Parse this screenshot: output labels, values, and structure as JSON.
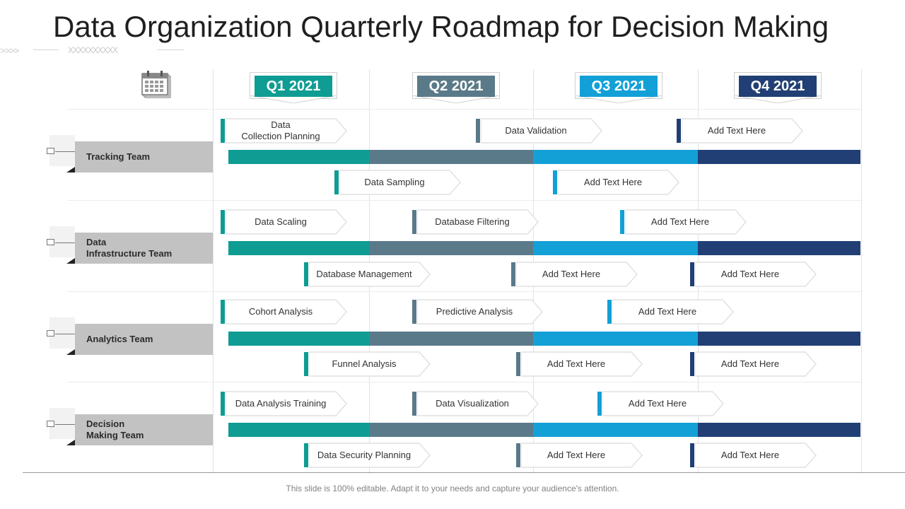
{
  "title": "Data Organization Quarterly Roadmap for Decision Making",
  "decoration": {
    "chevrons": ">>>>",
    "crosses": "XXXXXXXXXX"
  },
  "quarters": [
    {
      "label": "Q1 2021",
      "color": "#0e9c93"
    },
    {
      "label": "Q2 2021",
      "color": "#5a7a8a"
    },
    {
      "label": "Q3 2021",
      "color": "#12a0d6"
    },
    {
      "label": "Q4 2021",
      "color": "#213f75"
    }
  ],
  "teams": [
    {
      "name": "Tracking Team",
      "tasks": [
        {
          "label": "Data\nCollection Planning",
          "quarter": 0,
          "row": "top"
        },
        {
          "label": "Data Validation",
          "quarter": 1,
          "row": "top"
        },
        {
          "label": "Add Text Here",
          "quarter": 3,
          "row": "top"
        },
        {
          "label": "Data Sampling",
          "quarter": 0,
          "row": "bottom"
        },
        {
          "label": "Add Text Here",
          "quarter": 2,
          "row": "bottom"
        }
      ]
    },
    {
      "name": "Data\nInfrastructure Team",
      "tasks": [
        {
          "label": "Data Scaling",
          "quarter": 0,
          "row": "top"
        },
        {
          "label": "Database Filtering",
          "quarter": 1,
          "row": "top"
        },
        {
          "label": "Add Text Here",
          "quarter": 2,
          "row": "top"
        },
        {
          "label": "Database Management",
          "quarter": 0,
          "row": "bottom"
        },
        {
          "label": "Add Text Here",
          "quarter": 1,
          "row": "bottom"
        },
        {
          "label": "Add Text Here",
          "quarter": 3,
          "row": "bottom"
        }
      ]
    },
    {
      "name": "Analytics Team",
      "tasks": [
        {
          "label": "Cohort Analysis",
          "quarter": 0,
          "row": "top"
        },
        {
          "label": "Predictive Analysis",
          "quarter": 1,
          "row": "top"
        },
        {
          "label": "Add Text Here",
          "quarter": 2,
          "row": "top"
        },
        {
          "label": "Funnel Analysis",
          "quarter": 0,
          "row": "bottom"
        },
        {
          "label": "Add Text Here",
          "quarter": 1,
          "row": "bottom"
        },
        {
          "label": "Add Text Here",
          "quarter": 3,
          "row": "bottom"
        }
      ]
    },
    {
      "name": "Decision\nMaking Team",
      "tasks": [
        {
          "label": "Data Analysis Training",
          "quarter": 0,
          "row": "top"
        },
        {
          "label": "Data Visualization",
          "quarter": 1,
          "row": "top"
        },
        {
          "label": "Add Text Here",
          "quarter": 2,
          "row": "top"
        },
        {
          "label": "Data Security Planning",
          "quarter": 0,
          "row": "bottom"
        },
        {
          "label": "Add Text Here",
          "quarter": 1,
          "row": "bottom"
        },
        {
          "label": "Add Text Here",
          "quarter": 3,
          "row": "bottom"
        }
      ]
    }
  ],
  "footer": "This slide is 100% editable. Adapt it to your needs and capture your audience's attention.",
  "icons": {
    "calendar": "calendar-icon"
  }
}
